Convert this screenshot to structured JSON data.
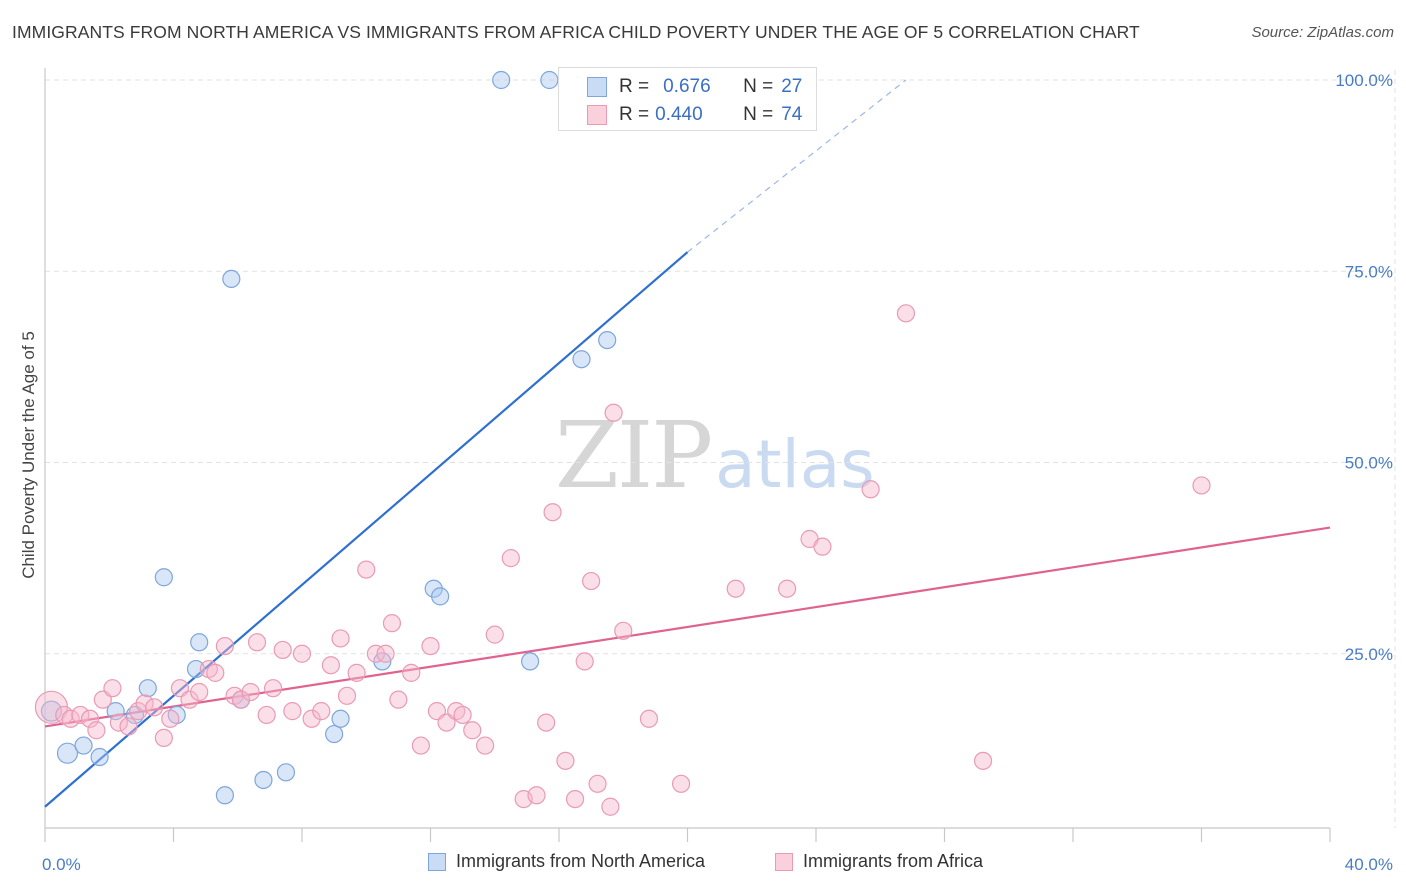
{
  "title": "IMMIGRANTS FROM NORTH AMERICA VS IMMIGRANTS FROM AFRICA CHILD POVERTY UNDER THE AGE OF 5 CORRELATION CHART",
  "source": "Source: ZipAtlas.com",
  "watermark": {
    "zip": "ZIP",
    "atlas": "atlas"
  },
  "chart_data": {
    "type": "scatter",
    "title": "IMMIGRANTS FROM NORTH AMERICA VS IMMIGRANTS FROM AFRICA CHILD POVERTY UNDER THE AGE OF 5 CORRELATION CHART",
    "xlabel": "",
    "ylabel": "Child Poverty Under the Age of 5",
    "xlim": [
      0,
      40
    ],
    "ylim": [
      0,
      100
    ],
    "x_tick_labels": [
      {
        "value": 0,
        "label": "0.0%"
      },
      {
        "value": 40,
        "label": "40.0%"
      }
    ],
    "y_tick_labels": [
      {
        "value": 25,
        "label": "25.0%"
      },
      {
        "value": 50,
        "label": "50.0%"
      },
      {
        "value": 75,
        "label": "75.0%"
      },
      {
        "value": 100,
        "label": "100.0%"
      }
    ],
    "grid": true,
    "legend_position": "bottom",
    "colors": {
      "north_america": "#a9c8f0",
      "north_america_line": "#2e6fd0",
      "africa": "#f7b8cb",
      "africa_line": "#e0628e"
    },
    "series": [
      {
        "name": "Immigrants from North America",
        "key": "north_america",
        "r": "0.676",
        "n": "27",
        "points": [
          [
            0.2,
            17.5
          ],
          [
            0.7,
            12.0
          ],
          [
            1.2,
            13.0
          ],
          [
            1.7,
            11.5
          ],
          [
            2.2,
            17.5
          ],
          [
            2.8,
            17.0
          ],
          [
            3.2,
            20.5
          ],
          [
            3.7,
            35.0
          ],
          [
            4.1,
            17.0
          ],
          [
            4.8,
            26.5
          ],
          [
            4.7,
            23.0
          ],
          [
            5.8,
            74.0
          ],
          [
            5.6,
            6.5
          ],
          [
            6.1,
            19.0
          ],
          [
            6.8,
            8.5
          ],
          [
            7.5,
            9.5
          ],
          [
            9.0,
            14.5
          ],
          [
            9.2,
            16.5
          ],
          [
            10.5,
            24.0
          ],
          [
            12.1,
            33.5
          ],
          [
            12.3,
            32.5
          ],
          [
            14.2,
            100.0
          ],
          [
            15.1,
            24.0
          ],
          [
            15.7,
            100.0
          ],
          [
            16.5,
            100.0
          ],
          [
            16.7,
            63.5
          ],
          [
            17.5,
            66.0
          ]
        ],
        "trend": {
          "x": [
            0,
            20.0
          ],
          "y": [
            5.0,
            77.5
          ],
          "dashed_to": [
            26.8,
            100.0
          ]
        }
      },
      {
        "name": "Immigrants from Africa",
        "key": "africa",
        "r": "0.440",
        "n": "74",
        "points": [
          [
            0.2,
            18.0
          ],
          [
            0.6,
            17.0
          ],
          [
            0.8,
            16.5
          ],
          [
            1.1,
            17.0
          ],
          [
            1.4,
            16.5
          ],
          [
            1.6,
            15.0
          ],
          [
            1.8,
            19.0
          ],
          [
            2.1,
            20.5
          ],
          [
            2.3,
            16.0
          ],
          [
            2.6,
            15.5
          ],
          [
            2.9,
            17.5
          ],
          [
            3.1,
            18.5
          ],
          [
            3.4,
            18.0
          ],
          [
            3.7,
            14.0
          ],
          [
            3.9,
            16.5
          ],
          [
            4.2,
            20.5
          ],
          [
            4.5,
            19.0
          ],
          [
            4.8,
            20.0
          ],
          [
            5.1,
            23.0
          ],
          [
            5.3,
            22.5
          ],
          [
            5.6,
            26.0
          ],
          [
            5.9,
            19.5
          ],
          [
            6.1,
            19.0
          ],
          [
            6.4,
            20.0
          ],
          [
            6.6,
            26.5
          ],
          [
            6.9,
            17.0
          ],
          [
            7.1,
            20.5
          ],
          [
            7.4,
            25.5
          ],
          [
            7.7,
            17.5
          ],
          [
            8.0,
            25.0
          ],
          [
            8.3,
            16.5
          ],
          [
            8.6,
            17.5
          ],
          [
            8.9,
            23.5
          ],
          [
            9.2,
            27.0
          ],
          [
            9.4,
            19.5
          ],
          [
            9.7,
            22.5
          ],
          [
            10.0,
            36.0
          ],
          [
            10.3,
            25.0
          ],
          [
            10.6,
            25.0
          ],
          [
            10.8,
            29.0
          ],
          [
            11.0,
            19.0
          ],
          [
            11.4,
            22.5
          ],
          [
            11.7,
            13.0
          ],
          [
            12.0,
            26.0
          ],
          [
            12.2,
            17.5
          ],
          [
            12.5,
            16.0
          ],
          [
            12.8,
            17.5
          ],
          [
            13.0,
            17.0
          ],
          [
            13.3,
            15.0
          ],
          [
            13.7,
            13.0
          ],
          [
            14.0,
            27.5
          ],
          [
            14.5,
            37.5
          ],
          [
            14.9,
            6.0
          ],
          [
            15.3,
            6.5
          ],
          [
            15.6,
            16.0
          ],
          [
            15.8,
            43.5
          ],
          [
            16.2,
            11.0
          ],
          [
            16.5,
            6.0
          ],
          [
            16.8,
            24.0
          ],
          [
            17.0,
            34.5
          ],
          [
            17.2,
            8.0
          ],
          [
            17.6,
            5.0
          ],
          [
            17.7,
            56.5
          ],
          [
            18.0,
            28.0
          ],
          [
            18.8,
            16.5
          ],
          [
            19.8,
            8.0
          ],
          [
            21.5,
            33.5
          ],
          [
            23.1,
            33.5
          ],
          [
            23.8,
            40.0
          ],
          [
            24.2,
            39.0
          ],
          [
            25.7,
            46.5
          ],
          [
            26.8,
            69.5
          ],
          [
            29.2,
            11.0
          ],
          [
            36.0,
            47.0
          ]
        ],
        "trend": {
          "x": [
            0,
            40
          ],
          "y": [
            15.5,
            41.5
          ]
        }
      }
    ]
  },
  "legend": {
    "items": [
      {
        "label": "Immigrants from North America"
      },
      {
        "label": "Immigrants from Africa"
      }
    ],
    "r_box": [
      {
        "r_label": "R =",
        "r_value": "0.676",
        "n_label": "N =",
        "n_value": "27"
      },
      {
        "r_label": "R =",
        "r_value": "0.440",
        "n_label": "N =",
        "n_value": "74"
      }
    ]
  }
}
